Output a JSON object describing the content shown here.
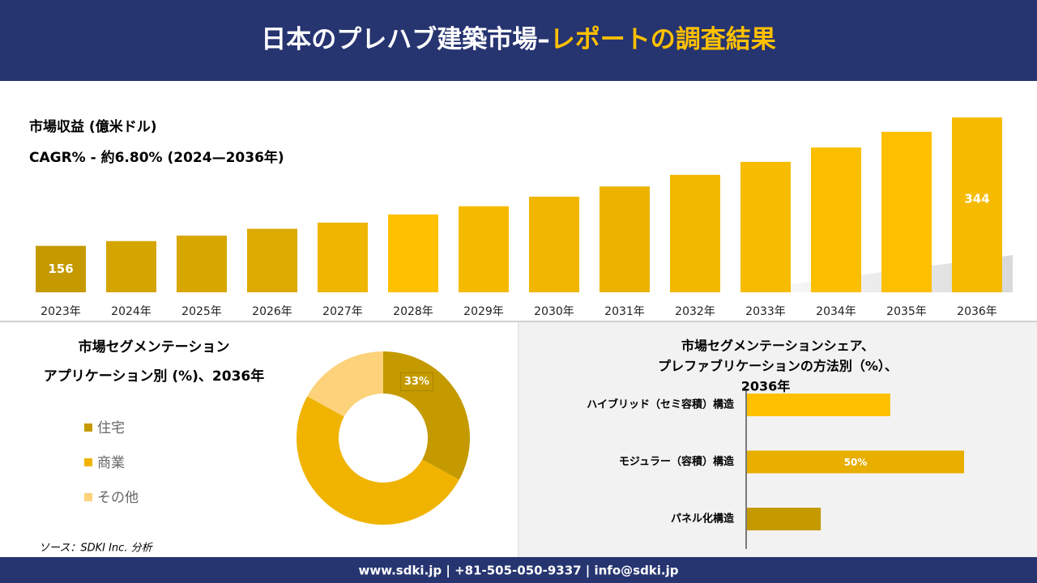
{
  "header": {
    "title": [
      "日本のプレハブ建築市場–",
      "レポートの調査結果"
    ]
  },
  "chart_data": [
    {
      "type": "bar",
      "title": "市場収益 (億米ドル)",
      "subtitle": "CAGR% - 約6.80% (2024—2036年)",
      "categories": [
        "2023年",
        "2024年",
        "2025年",
        "2026年",
        "2027年",
        "2028年",
        "2029年",
        "2030年",
        "2031年",
        "2032年",
        "2033年",
        "2034年",
        "2035年",
        "2036年"
      ],
      "values": [
        156,
        163,
        171,
        181,
        190,
        202,
        214,
        228,
        243,
        260,
        279,
        300,
        323,
        344
      ],
      "label_shown": [
        true,
        false,
        false,
        false,
        false,
        false,
        false,
        false,
        false,
        false,
        false,
        false,
        false,
        true
      ],
      "colors": [
        "#c49a00",
        "#d4a500",
        "#d9a800",
        "#dcaa00",
        "#eeb600",
        "#ffc000",
        "#f5ba00",
        "#f0b600",
        "#ebb300",
        "#f2b800",
        "#f7bc00",
        "#fbbe00",
        "#fdbf00",
        "#f6bb00"
      ],
      "ylim": [
        88,
        350
      ]
    },
    {
      "type": "donut",
      "title": "市場セグメンテーション",
      "subtitle": "アプリケーション別 (%)、2036年",
      "categories": [
        "住宅",
        "商業",
        "その他"
      ],
      "values": [
        33,
        50,
        17
      ],
      "value_labels": [
        "33%",
        null,
        null
      ],
      "colors": [
        "#c49a00",
        "#f0b400",
        "#fcd27a"
      ]
    },
    {
      "type": "barh",
      "title": [
        "市場セグメンテーションシェア、",
        "プレファブリケーションの方法別（%）、",
        "2036年"
      ],
      "categories": [
        "ハイブリッド（セミ容積）構造",
        "モジュラー（容積）構造",
        "パネル化構造"
      ],
      "values": [
        33,
        50,
        17
      ],
      "value_labels": [
        null,
        "50%",
        null
      ],
      "colors": [
        "#ffc000",
        "#e8ae00",
        "#c49a00"
      ],
      "xlim": [
        0,
        50
      ]
    }
  ],
  "source": "ソース：SDKI Inc. 分析",
  "footer": "www.sdki.jp | +81-505-050-9337 | info@sdki.jp"
}
